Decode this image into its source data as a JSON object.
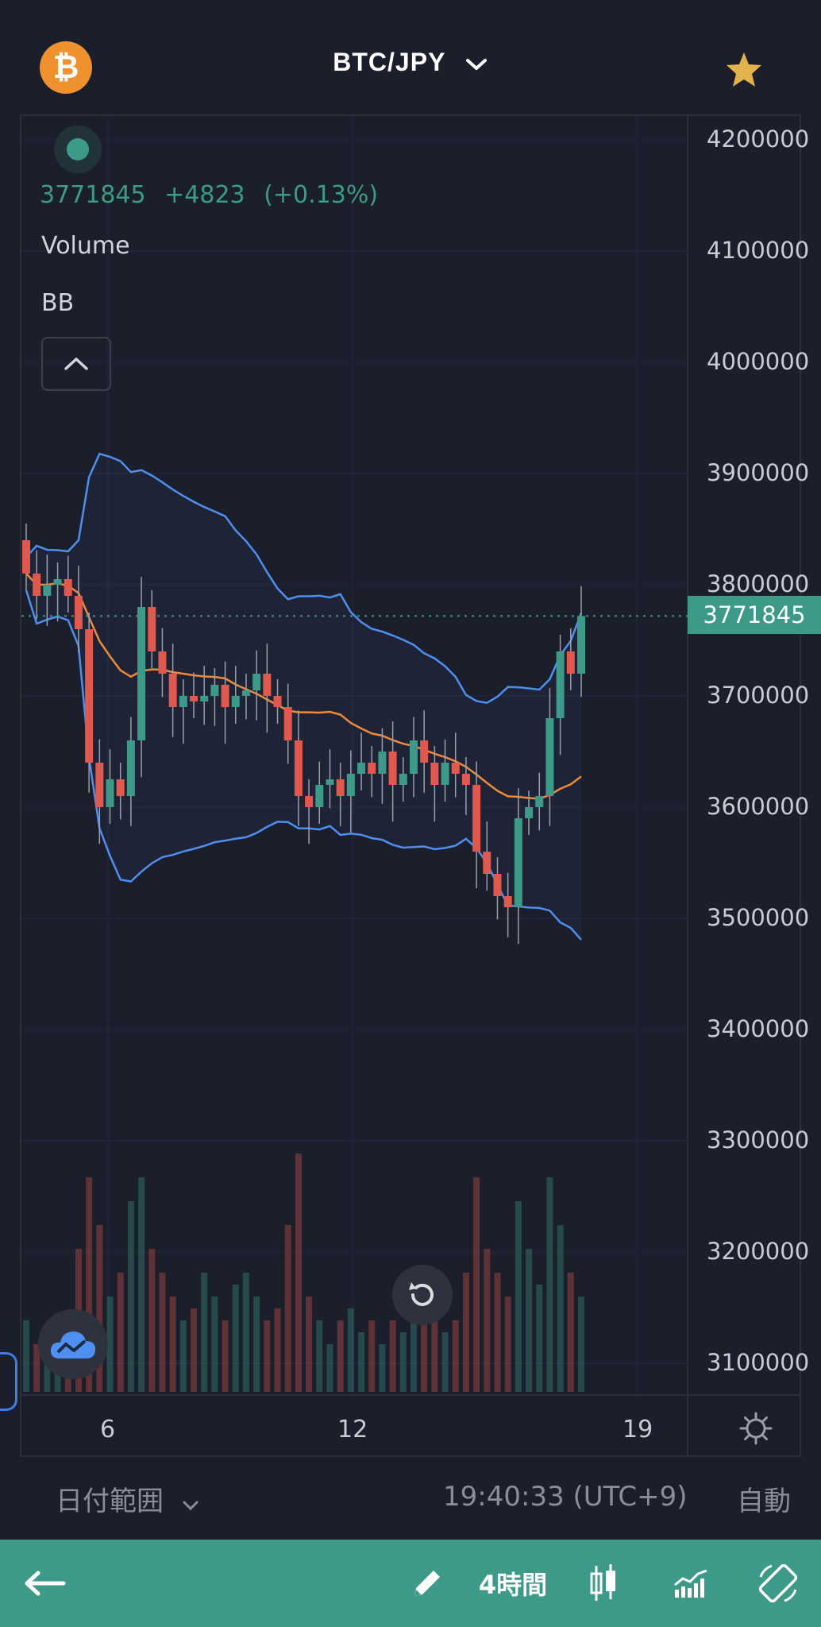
{
  "header": {
    "pair": "BTC/JPY",
    "coin_icon": "bitcoin-icon",
    "favorite_icon": "star-icon",
    "coin_color": "#f0912f",
    "favorite_color": "#e1b34a"
  },
  "legend": {
    "last_price": "3771845",
    "change": "+4823",
    "change_pct": "(+0.13%)",
    "indicators": [
      "Volume",
      "BB"
    ]
  },
  "price_axis": {
    "ticks": [
      "4200000",
      "4100000",
      "4000000",
      "3900000",
      "3800000",
      "3700000",
      "3600000",
      "3500000",
      "3400000",
      "3300000",
      "3200000",
      "3100000"
    ],
    "current_price_tag": "3771845"
  },
  "time_axis": {
    "ticks": [
      "6",
      "12",
      "19"
    ]
  },
  "bottom_bar": {
    "date_range": "日付範囲",
    "clock": "19:40:33 (UTC+9)",
    "scale_mode": "自動"
  },
  "toolbar": {
    "back_icon": "arrow-left-icon",
    "draw_icon": "pencil-icon",
    "interval": "4時間",
    "chart_type_icon": "candlestick-icon",
    "indicators_icon": "indicators-icon",
    "rotate_icon": "rotate-screen-icon"
  },
  "colors": {
    "background": "#1b1e2b",
    "up": "#3d9a88",
    "down": "#e0584e",
    "bb_band": "#4e8ff0",
    "bb_basis": "#ef8a3c",
    "accent": "#3d9a88"
  },
  "chart_data": {
    "type": "candlestick",
    "symbol": "BTC/JPY",
    "interval": "4時間",
    "ylim": [
      3000000,
      4250000
    ],
    "y_ticks": [
      3100000,
      3200000,
      3300000,
      3400000,
      3500000,
      3600000,
      3700000,
      3800000,
      3900000,
      4000000,
      4100000,
      4200000
    ],
    "x_ticks": [
      "6",
      "12",
      "19"
    ],
    "last_price": 3771845,
    "indicators": [
      "Volume",
      "BB"
    ],
    "candles_approx_close": [
      3810000,
      3790000,
      3800000,
      3805000,
      3790000,
      3760000,
      3640000,
      3600000,
      3625000,
      3610000,
      3660000,
      3780000,
      3740000,
      3720000,
      3690000,
      3700000,
      3695000,
      3700000,
      3710000,
      3690000,
      3700000,
      3705000,
      3720000,
      3700000,
      3690000,
      3660000,
      3610000,
      3600000,
      3620000,
      3625000,
      3610000,
      3630000,
      3640000,
      3630000,
      3650000,
      3620000,
      3630000,
      3660000,
      3640000,
      3620000,
      3640000,
      3630000,
      3620000,
      3560000,
      3540000,
      3520000,
      3510000,
      3590000,
      3600000,
      3610000,
      3680000,
      3740000,
      3720000,
      3771845
    ]
  }
}
